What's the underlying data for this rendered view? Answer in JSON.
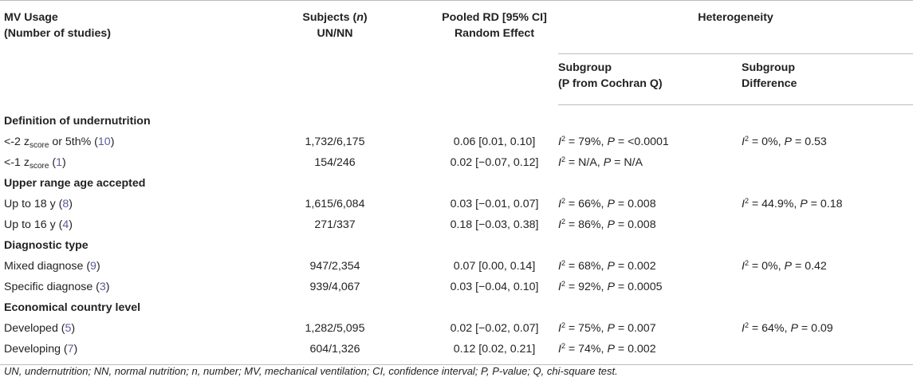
{
  "header": {
    "col1_line1": "MV Usage",
    "col1_line2": "(Number of studies)",
    "col2_line1_pre": "Subjects (",
    "col2_line1_n": "n",
    "col2_line1_post": ")",
    "col2_line2": "UN/NN",
    "col3_line1": "Pooled RD [95% CI]",
    "col3_line2": "Random Effect",
    "heterogeneity": "Heterogeneity",
    "sub1_line1": "Subgroup",
    "sub1_line2": "(P from Cochran Q)",
    "sub2_line1": "Subgroup",
    "sub2_line2": "Difference"
  },
  "sections": [
    {
      "title": "Definition of undernutrition",
      "rows": [
        {
          "label_a": "<-2 z",
          "label_sub": "score",
          "label_b": " or 5th% (",
          "count": "10",
          "label_c": ")",
          "subjects": "1,732/6,175",
          "rd": "0.06 [0.01, 0.10]",
          "i2": "79%",
          "p": "<0.0001",
          "diff_i2": "0%",
          "diff_p": "0.53"
        },
        {
          "label_a": "<-1 z",
          "label_sub": "score",
          "label_b": " (",
          "count": "1",
          "label_c": ")",
          "subjects": "154/246",
          "rd": "0.02 [−0.07, 0.12]",
          "i2": "N/A",
          "p": "N/A",
          "diff_i2": "",
          "diff_p": ""
        }
      ]
    },
    {
      "title": "Upper range age accepted",
      "rows": [
        {
          "label_a": "Up to 18 y (",
          "label_sub": "",
          "label_b": "",
          "count": "8",
          "label_c": ")",
          "subjects": "1,615/6,084",
          "rd": "0.03 [−0.01, 0.07]",
          "i2": "66%",
          "p": "0.008",
          "diff_i2": "44.9%",
          "diff_p": "0.18"
        },
        {
          "label_a": "Up to 16 y (",
          "label_sub": "",
          "label_b": "",
          "count": "4",
          "label_c": ")",
          "subjects": "271/337",
          "rd": "0.18 [−0.03, 0.38]",
          "i2": "86%",
          "p": "0.008",
          "diff_i2": "",
          "diff_p": ""
        }
      ]
    },
    {
      "title": "Diagnostic type",
      "rows": [
        {
          "label_a": "Mixed diagnose (",
          "label_sub": "",
          "label_b": "",
          "count": "9",
          "label_c": ")",
          "subjects": "947/2,354",
          "rd": "0.07 [0.00, 0.14]",
          "i2": "68%",
          "p": "0.002",
          "diff_i2": "0%",
          "diff_p": "0.42"
        },
        {
          "label_a": "Specific diagnose (",
          "label_sub": "",
          "label_b": "",
          "count": "3",
          "label_c": ")",
          "subjects": "939/4,067",
          "rd": "0.03 [−0.04, 0.10]",
          "i2": "92%",
          "p": "0.0005",
          "diff_i2": "",
          "diff_p": ""
        }
      ]
    },
    {
      "title": "Economical country level",
      "rows": [
        {
          "label_a": "Developed (",
          "label_sub": "",
          "label_b": "",
          "count": "5",
          "label_c": ")",
          "subjects": "1,282/5,095",
          "rd": "0.02 [−0.02, 0.07]",
          "i2": "75%",
          "p": "0.007",
          "diff_i2": "64%",
          "diff_p": "0.09"
        },
        {
          "label_a": "Developing (",
          "label_sub": "",
          "label_b": "",
          "count": "7",
          "label_c": ")",
          "subjects": "604/1,326",
          "rd": "0.12 [0.02, 0.21]",
          "i2": "74%",
          "p": "0.002",
          "diff_i2": "",
          "diff_p": ""
        }
      ]
    }
  ],
  "stat_symbols": {
    "i": "I",
    "sup": "2",
    "p": "P",
    "eq": " = ",
    "sep": ", "
  },
  "footnote": "UN, undernutrition; NN, normal nutrition; n, number; MV, mechanical ventilation; CI, confidence interval; P, P-value; Q, chi-square test."
}
